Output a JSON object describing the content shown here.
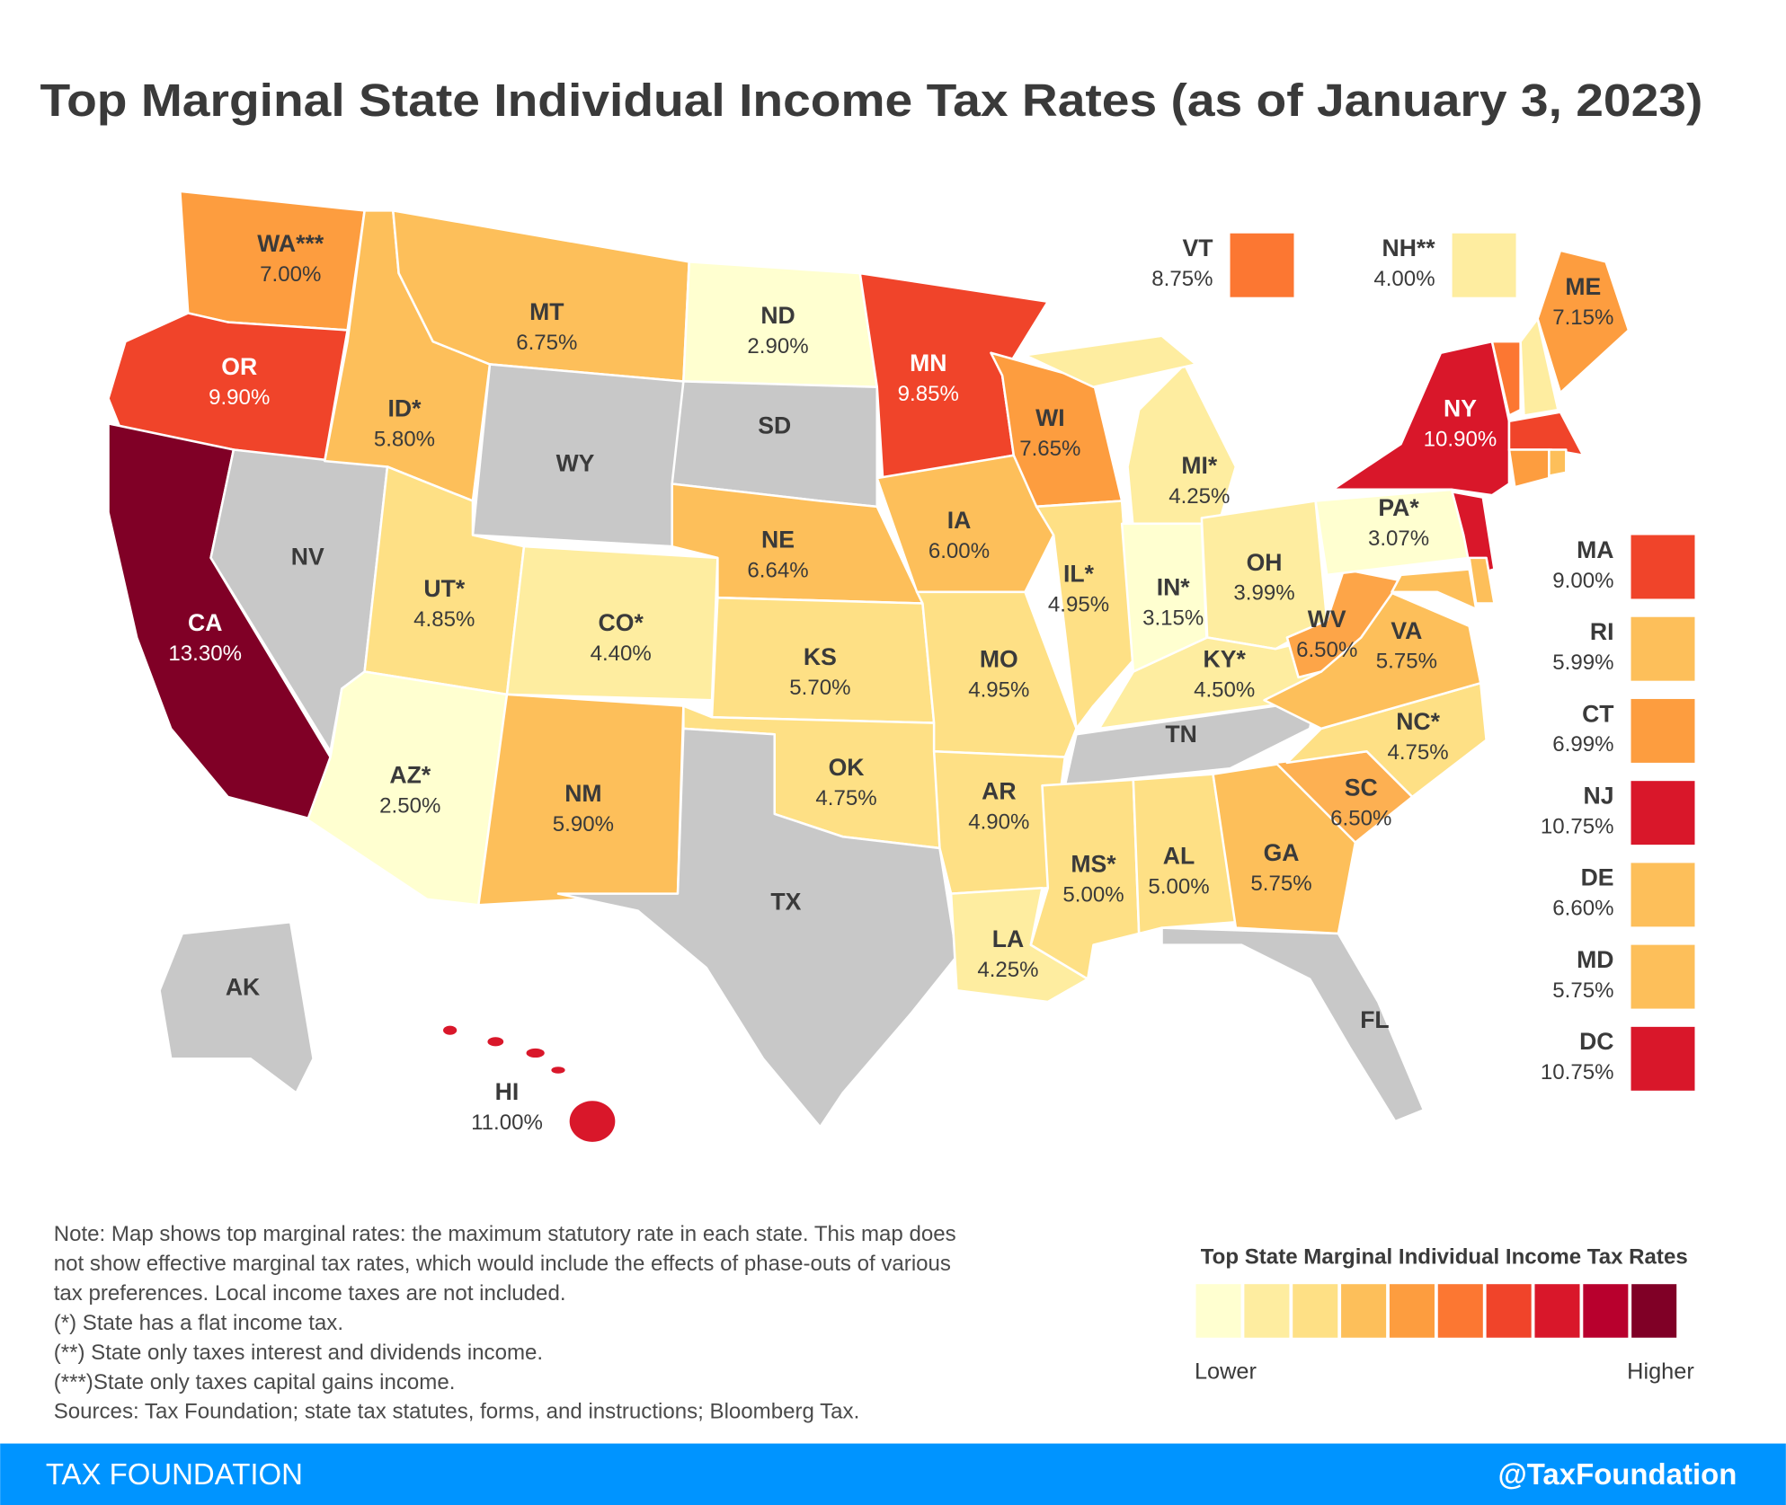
{
  "chart_data": {
    "type": "choropleth",
    "title": "Top Marginal State Individual Income Tax Rates (as of January 3, 2023)",
    "states": [
      {
        "name": "WA***",
        "value": 7.0,
        "value_label": "7.00%",
        "color": "#fd9d3f"
      },
      {
        "name": "OR",
        "value": 9.9,
        "value_label": "9.90%",
        "color": "#f0442a"
      },
      {
        "name": "CA",
        "value": 13.3,
        "value_label": "13.30%",
        "color": "#800026"
      },
      {
        "name": "NV",
        "color": "#c8c8c8"
      },
      {
        "name": "ID*",
        "value": 5.8,
        "value_label": "5.80%",
        "color": "#fdbf5a"
      },
      {
        "name": "MT",
        "value": 6.75,
        "value_label": "6.75%",
        "color": "#fdbf5a"
      },
      {
        "name": "WY",
        "color": "#c8c8c8"
      },
      {
        "name": "UT*",
        "value": 4.85,
        "value_label": "4.85%",
        "color": "#fee085"
      },
      {
        "name": "CO*",
        "value": 4.4,
        "value_label": "4.40%",
        "color": "#feeda0"
      },
      {
        "name": "AZ*",
        "value": 2.5,
        "value_label": "2.50%",
        "color": "#ffffd0"
      },
      {
        "name": "NM",
        "value": 5.9,
        "value_label": "5.90%",
        "color": "#fdbf5a"
      },
      {
        "name": "ND",
        "value": 2.9,
        "value_label": "2.90%",
        "color": "#ffffd0"
      },
      {
        "name": "SD",
        "color": "#c8c8c8"
      },
      {
        "name": "NE",
        "value": 6.64,
        "value_label": "6.64%",
        "color": "#fdbf5a"
      },
      {
        "name": "KS",
        "value": 5.7,
        "value_label": "5.70%",
        "color": "#fee085"
      },
      {
        "name": "OK",
        "value": 4.75,
        "value_label": "4.75%",
        "color": "#fee085"
      },
      {
        "name": "TX",
        "color": "#c8c8c8"
      },
      {
        "name": "MN",
        "value": 9.85,
        "value_label": "9.85%",
        "color": "#f0442a"
      },
      {
        "name": "IA",
        "value": 6.0,
        "value_label": "6.00%",
        "color": "#fdbf5a"
      },
      {
        "name": "MO",
        "value": 4.95,
        "value_label": "4.95%",
        "color": "#fee085"
      },
      {
        "name": "AR",
        "value": 4.9,
        "value_label": "4.90%",
        "color": "#fee085"
      },
      {
        "name": "LA",
        "value": 4.25,
        "value_label": "4.25%",
        "color": "#feeda0"
      },
      {
        "name": "WI",
        "value": 7.65,
        "value_label": "7.65%",
        "color": "#fd9d3f"
      },
      {
        "name": "IL*",
        "value": 4.95,
        "value_label": "4.95%",
        "color": "#fee085"
      },
      {
        "name": "MI*",
        "value": 4.25,
        "value_label": "4.25%",
        "color": "#feeda0"
      },
      {
        "name": "IN*",
        "value": 3.15,
        "value_label": "3.15%",
        "color": "#ffffd0"
      },
      {
        "name": "OH",
        "value": 3.99,
        "value_label": "3.99%",
        "color": "#feeda0"
      },
      {
        "name": "KY*",
        "value": 4.5,
        "value_label": "4.50%",
        "color": "#feeda0"
      },
      {
        "name": "TN",
        "color": "#c8c8c8"
      },
      {
        "name": "MS*",
        "value": 5.0,
        "value_label": "5.00%",
        "color": "#fee085"
      },
      {
        "name": "AL",
        "value": 5.0,
        "value_label": "5.00%",
        "color": "#fee085"
      },
      {
        "name": "GA",
        "value": 5.75,
        "value_label": "5.75%",
        "color": "#fdbf5a"
      },
      {
        "name": "FL",
        "color": "#c8c8c8"
      },
      {
        "name": "SC",
        "value": 6.5,
        "value_label": "6.50%",
        "color": "#fdb052"
      },
      {
        "name": "NC*",
        "value": 4.75,
        "value_label": "4.75%",
        "color": "#fee085"
      },
      {
        "name": "VA",
        "value": 5.75,
        "value_label": "5.75%",
        "color": "#fdbf5a"
      },
      {
        "name": "WV",
        "value": 6.5,
        "value_label": "6.50%",
        "color": "#fda548"
      },
      {
        "name": "PA*",
        "value": 3.07,
        "value_label": "3.07%",
        "color": "#ffffd0"
      },
      {
        "name": "NY",
        "value": 10.9,
        "value_label": "10.90%",
        "color": "#d9172a"
      },
      {
        "name": "ME",
        "value": 7.15,
        "value_label": "7.15%",
        "color": "#fd9d3f"
      },
      {
        "name": "AK",
        "color": "#c8c8c8"
      },
      {
        "name": "HI",
        "value": 11.0,
        "value_label": "11.00%",
        "color": "#d9172a"
      }
    ],
    "inset_states": [
      {
        "name": "VT",
        "value": 8.75,
        "value_label": "8.75%",
        "color": "#fc7732"
      },
      {
        "name": "NH**",
        "value": 4.0,
        "value_label": "4.00%",
        "color": "#feeda0"
      },
      {
        "name": "MA",
        "value": 9.0,
        "value_label": "9.00%",
        "color": "#f0442a"
      },
      {
        "name": "RI",
        "value": 5.99,
        "value_label": "5.99%",
        "color": "#fdbf5a"
      },
      {
        "name": "CT",
        "value": 6.99,
        "value_label": "6.99%",
        "color": "#fd9d3f"
      },
      {
        "name": "NJ",
        "value": 10.75,
        "value_label": "10.75%",
        "color": "#d9172a"
      },
      {
        "name": "DE",
        "value": 6.6,
        "value_label": "6.60%",
        "color": "#fdbf5a"
      },
      {
        "name": "MD",
        "value": 5.75,
        "value_label": "5.75%",
        "color": "#fdbf5a"
      },
      {
        "name": "DC",
        "value": 10.75,
        "value_label": "10.75%",
        "color": "#d9172a"
      }
    ],
    "notes": [
      "Note: Map shows top marginal rates: the maximum statutory rate in each state. This map does",
      "not show effective marginal tax rates, which would include the effects of phase-outs of various",
      "tax preferences. Local income taxes are not included.",
      "(*) State has a flat income tax.",
      "(**) State only taxes interest and dividends income.",
      "(***)State only taxes capital gains income.",
      "Sources: Tax Foundation; state tax statutes, forms, and instructions; Bloomberg Tax."
    ],
    "scale_title": "Top State Marginal Individual Income Tax Rates",
    "scale_colors": [
      "#ffffd0",
      "#feeda0",
      "#fee085",
      "#fdbf5a",
      "#fd9d3f",
      "#fc7732",
      "#f0442a",
      "#d9172a",
      "#b8002d",
      "#800026"
    ],
    "scale_low": "Lower",
    "scale_high": "Higher",
    "footer_left": "TAX FOUNDATION",
    "footer_right": "@TaxFoundation"
  }
}
